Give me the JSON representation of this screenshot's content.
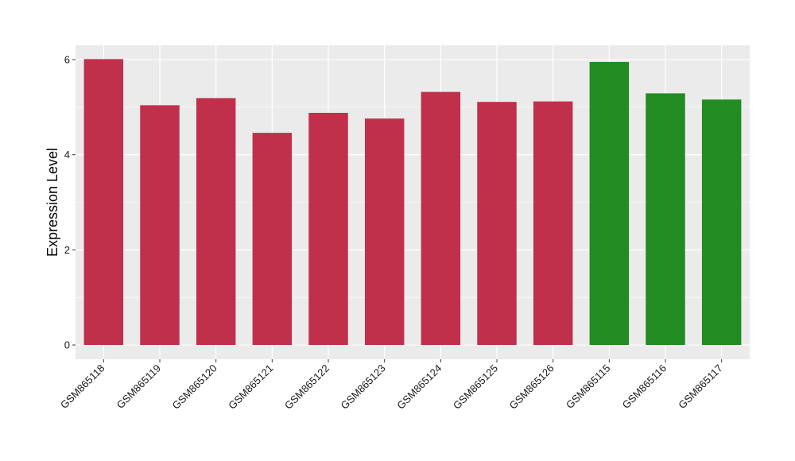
{
  "chart_data": {
    "type": "bar",
    "title": "",
    "xlabel": "",
    "ylabel": "Expression Level",
    "categories": [
      "GSM865118",
      "GSM865119",
      "GSM865120",
      "GSM865121",
      "GSM865122",
      "GSM865123",
      "GSM865124",
      "GSM865125",
      "GSM865126",
      "GSM865115",
      "GSM865116",
      "GSM865117"
    ],
    "values": [
      6.01,
      5.04,
      5.19,
      4.46,
      4.88,
      4.76,
      5.32,
      5.11,
      5.12,
      5.95,
      5.29,
      5.16
    ],
    "bar_colors": [
      "#c0304a",
      "#c0304a",
      "#c0304a",
      "#c0304a",
      "#c0304a",
      "#c0304a",
      "#c0304a",
      "#c0304a",
      "#c0304a",
      "#228b22",
      "#228b22",
      "#228b22"
    ],
    "yticks": [
      0,
      2,
      4,
      6
    ],
    "ylim": [
      -0.3,
      6.3
    ],
    "grid": true,
    "panel_background": "#ebebeb",
    "grid_color": "#ffffff"
  }
}
